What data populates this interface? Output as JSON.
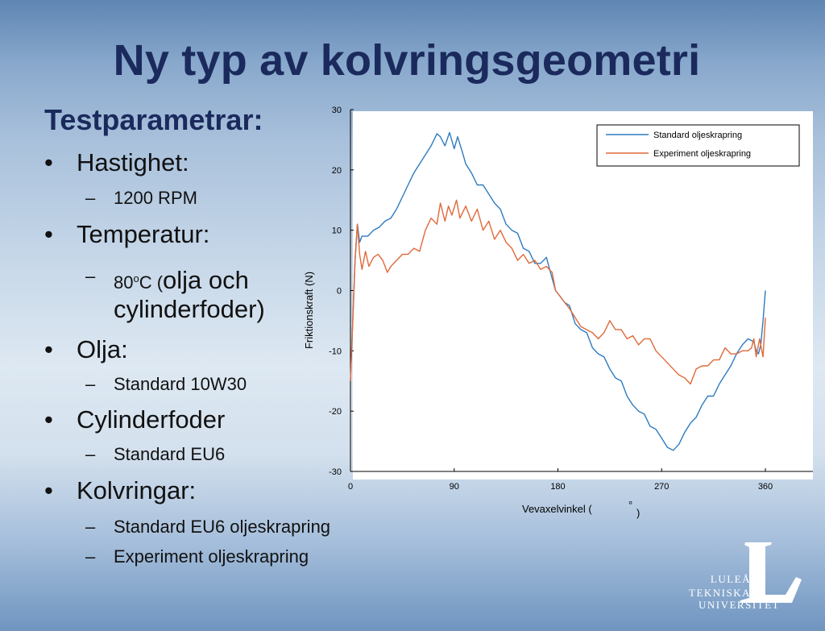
{
  "slide": {
    "title": "Ny typ av kolvringsgeometri",
    "heading": "Testparametrar:",
    "bullets": {
      "b1": {
        "label": "Hastighet:",
        "sub": "1200 RPM"
      },
      "b2": {
        "label": "Temperatur:",
        "sub_prefix": "80",
        "sub_deg": "o",
        "sub_c": "C (",
        "sub_rest": "olja och",
        "sub_line2": "cylinderfoder)"
      },
      "b3": {
        "label": "Olja:",
        "sub": "Standard 10W30"
      },
      "b4": {
        "label": "Cylinderfoder",
        "sub": "Standard EU6"
      },
      "b5": {
        "label": "Kolvringar:",
        "sub1": "Standard EU6 oljeskrapring",
        "sub2": "Experiment oljeskrapring"
      }
    },
    "logo": {
      "line1": "LULEÅ",
      "line2": "TEKNISKA",
      "line3": "UNIVERSITET",
      "letter": "L"
    }
  },
  "chart_data": {
    "type": "line",
    "xlabel": "Vevaxelvinkel (",
    "xlabel_degree": "°",
    "xlabel_close": ")",
    "ylabel": "Friktionskraft (N)",
    "xlim": [
      0,
      360
    ],
    "ylim": [
      -30,
      30
    ],
    "xticks": [
      0,
      90,
      180,
      270,
      360
    ],
    "yticks": [
      30,
      20,
      10,
      0,
      -10,
      -20,
      -30
    ],
    "legend_position": "top-right",
    "colors": {
      "standard": "#2e7bc0",
      "experiment": "#e0693a"
    },
    "series": [
      {
        "name": "Standard oljeskrapring",
        "x": [
          0,
          2,
          4,
          6,
          8,
          10,
          15,
          20,
          25,
          30,
          35,
          40,
          45,
          50,
          55,
          60,
          65,
          70,
          75,
          78,
          82,
          86,
          90,
          93,
          97,
          100,
          105,
          110,
          115,
          120,
          125,
          130,
          135,
          140,
          145,
          150,
          155,
          160,
          165,
          170,
          175,
          178,
          182,
          186,
          190,
          195,
          200,
          205,
          210,
          215,
          220,
          225,
          230,
          235,
          240,
          245,
          250,
          255,
          260,
          265,
          270,
          275,
          280,
          285,
          290,
          295,
          300,
          305,
          310,
          315,
          320,
          325,
          330,
          335,
          340,
          345,
          350,
          352,
          354,
          356,
          358,
          360
        ],
        "y": [
          -15,
          -5,
          5,
          11,
          8,
          9,
          9,
          10,
          10.5,
          11.5,
          12,
          13.5,
          15.5,
          17.5,
          19.5,
          21,
          22.5,
          24,
          26,
          25.5,
          24,
          26.2,
          23.5,
          25.5,
          23,
          21,
          19.5,
          17.5,
          17.5,
          16,
          14.5,
          13.5,
          11,
          10,
          9.5,
          7,
          6.5,
          4.5,
          4.5,
          5.5,
          2,
          0,
          -1,
          -2,
          -2.5,
          -5.5,
          -6.5,
          -7,
          -9.5,
          -10.5,
          -11,
          -13,
          -14.5,
          -15,
          -17.5,
          -19,
          -20,
          -20.5,
          -22.5,
          -23,
          -24.5,
          -26,
          -26.5,
          -25.5,
          -23.5,
          -22,
          -21,
          -19,
          -17.5,
          -17.5,
          -15.5,
          -14,
          -12.5,
          -10.5,
          -9,
          -8,
          -8.5,
          -10,
          -10.5,
          -9,
          -5,
          0
        ]
      },
      {
        "name": "Experiment oljeskrapring",
        "x": [
          0,
          2,
          4,
          6,
          8,
          10,
          13,
          16,
          20,
          24,
          28,
          32,
          35,
          40,
          45,
          50,
          55,
          60,
          65,
          70,
          75,
          78,
          82,
          85,
          88,
          92,
          95,
          100,
          105,
          110,
          115,
          120,
          125,
          130,
          135,
          140,
          145,
          150,
          155,
          160,
          165,
          170,
          175,
          178,
          182,
          186,
          190,
          195,
          200,
          205,
          210,
          215,
          220,
          225,
          230,
          235,
          240,
          245,
          250,
          255,
          260,
          265,
          270,
          275,
          280,
          285,
          290,
          295,
          300,
          305,
          310,
          315,
          320,
          325,
          330,
          335,
          340,
          345,
          348,
          350,
          352,
          355,
          358,
          360
        ],
        "y": [
          -15,
          -5,
          5,
          11,
          6,
          3.5,
          6.5,
          4,
          5.5,
          6,
          5,
          3,
          4,
          5,
          6,
          6,
          7,
          6.5,
          10,
          12,
          11,
          14.5,
          11.5,
          14,
          12.5,
          15,
          12,
          14,
          11.5,
          13.5,
          10,
          11.5,
          8.5,
          10,
          8,
          7,
          5,
          6,
          4.5,
          5,
          3.5,
          4,
          3,
          0,
          -1,
          -2,
          -3,
          -4.5,
          -6,
          -6.5,
          -7,
          -8,
          -7,
          -5,
          -6.5,
          -6.5,
          -8,
          -7.5,
          -9,
          -8,
          -8,
          -10,
          -11,
          -12,
          -13,
          -14,
          -14.5,
          -15.5,
          -13,
          -12.5,
          -12.5,
          -11.5,
          -11.5,
          -9.5,
          -10.5,
          -10.5,
          -10,
          -10,
          -9.5,
          -8,
          -11,
          -8,
          -11,
          -4.5
        ]
      }
    ]
  }
}
